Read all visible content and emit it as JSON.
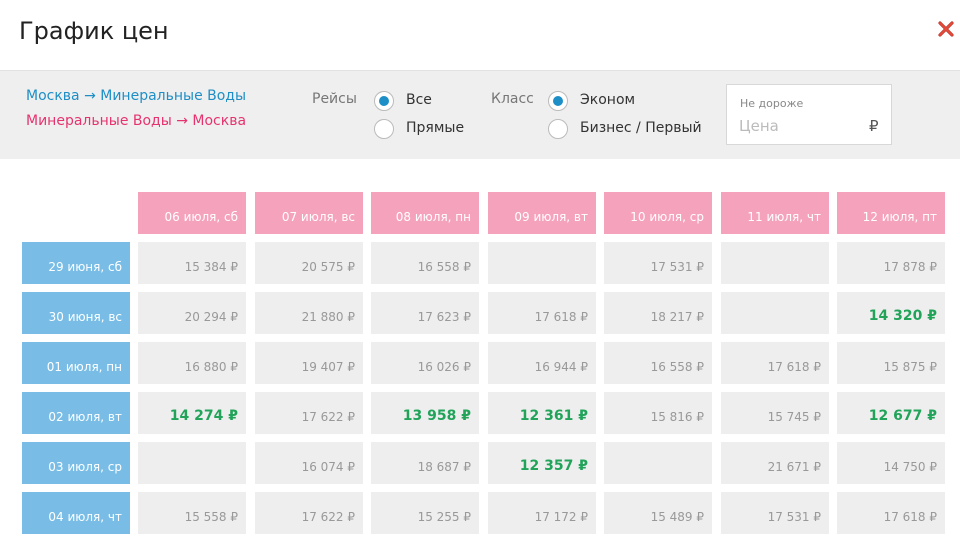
{
  "title": "График цен",
  "icons": {
    "close": "close-icon"
  },
  "colors": {
    "accent": "#1e8fc6",
    "route_back": "#e6336f",
    "col_header": "#f5a3bd",
    "row_header": "#79bde6",
    "low_price": "#21a35a"
  },
  "routes": {
    "outbound": "Москва → Минеральные Воды",
    "return": "Минеральные Воды → Москва"
  },
  "flights": {
    "label": "Рейсы",
    "options": [
      {
        "label": "Все",
        "checked": true
      },
      {
        "label": "Прямые",
        "checked": false
      }
    ]
  },
  "cabin": {
    "label": "Класс",
    "options": [
      {
        "label": "Эконом",
        "checked": true
      },
      {
        "label": "Бизнес / Первый",
        "checked": false
      }
    ]
  },
  "price_filter": {
    "caption": "Не дороже",
    "placeholder": "Цена",
    "value": "",
    "currency": "₽"
  },
  "table": {
    "columns": [
      "06 июля, сб",
      "07 июля, вс",
      "08 июля, пн",
      "09 июля, вт",
      "10 июля, ср",
      "11 июля, чт",
      "12 июля, пт"
    ],
    "rows": [
      {
        "label": "29 июня, сб",
        "cells": [
          "15 384 ₽",
          "20 575 ₽",
          "16 558 ₽",
          "",
          "17 531 ₽",
          "",
          "17 878 ₽"
        ],
        "low": [
          false,
          false,
          false,
          false,
          false,
          false,
          false
        ]
      },
      {
        "label": "30 июня, вс",
        "cells": [
          "20 294 ₽",
          "21 880 ₽",
          "17 623 ₽",
          "17 618 ₽",
          "18 217 ₽",
          "",
          "14 320 ₽"
        ],
        "low": [
          false,
          false,
          false,
          false,
          false,
          false,
          true
        ]
      },
      {
        "label": "01 июля, пн",
        "cells": [
          "16 880 ₽",
          "19 407 ₽",
          "16 026 ₽",
          "16 944 ₽",
          "16 558 ₽",
          "17 618 ₽",
          "15 875 ₽"
        ],
        "low": [
          false,
          false,
          false,
          false,
          false,
          false,
          false
        ]
      },
      {
        "label": "02 июля, вт",
        "cells": [
          "14 274 ₽",
          "17 622 ₽",
          "13 958 ₽",
          "12 361 ₽",
          "15 816 ₽",
          "15 745 ₽",
          "12 677 ₽"
        ],
        "low": [
          true,
          false,
          true,
          true,
          false,
          false,
          true
        ]
      },
      {
        "label": "03 июля, ср",
        "cells": [
          "",
          "16 074 ₽",
          "18 687 ₽",
          "12 357 ₽",
          "",
          "21 671 ₽",
          "14 750 ₽"
        ],
        "low": [
          false,
          false,
          false,
          true,
          false,
          false,
          false
        ]
      },
      {
        "label": "04 июля, чт",
        "cells": [
          "15 558 ₽",
          "17 622 ₽",
          "15 255 ₽",
          "17 172 ₽",
          "15 489 ₽",
          "17 531 ₽",
          "17 618 ₽"
        ],
        "low": [
          false,
          false,
          false,
          false,
          false,
          false,
          false
        ]
      }
    ]
  }
}
